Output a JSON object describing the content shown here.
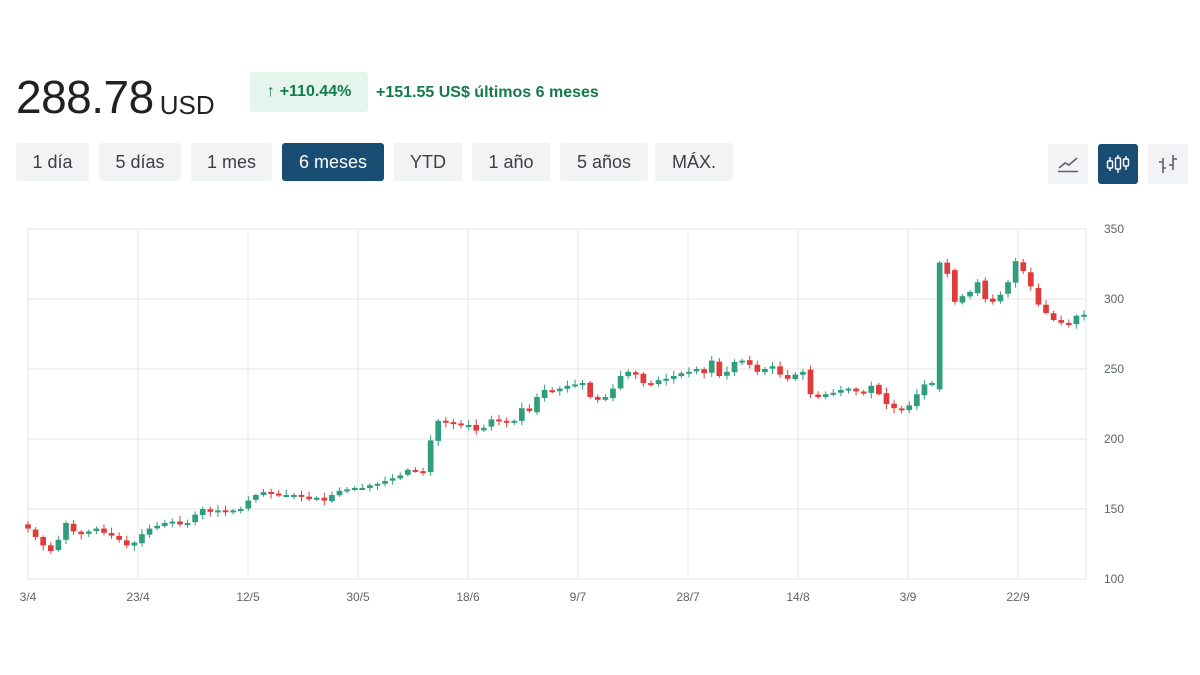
{
  "header": {
    "price": "288.78",
    "currency": "USD",
    "change_pct": "+110.44%",
    "change_abs": "+151.55 US$ últimos 6 meses",
    "up_icon": "arrow-up-icon",
    "positive_color": "#137a4b"
  },
  "range_tabs": [
    {
      "label": "1 día",
      "active": false
    },
    {
      "label": "5 días",
      "active": false
    },
    {
      "label": "1 mes",
      "active": false
    },
    {
      "label": "6 meses",
      "active": true
    },
    {
      "label": "YTD",
      "active": false
    },
    {
      "label": "1 año",
      "active": false
    },
    {
      "label": "5 años",
      "active": false
    },
    {
      "label": "MÁX.",
      "active": false
    }
  ],
  "view_buttons": [
    {
      "name": "line-chart-icon",
      "active": false
    },
    {
      "name": "candlestick-chart-icon",
      "active": true
    },
    {
      "name": "ohlc-bar-chart-icon",
      "active": false
    }
  ],
  "colors": {
    "up": "#2e9e7e",
    "down": "#e03c3c",
    "accent": "#1a4d73",
    "grid": "#e6e6e6"
  },
  "chart_data": {
    "type": "candlestick",
    "title": "",
    "xlabel": "",
    "ylabel": "",
    "ylim": [
      100,
      350
    ],
    "yticks": [
      100,
      150,
      200,
      250,
      300,
      350
    ],
    "y_axis_position": "right",
    "grid": true,
    "xtick_labels": [
      "3/4",
      "23/4",
      "12/5",
      "30/5",
      "18/6",
      "9/7",
      "28/7",
      "14/8",
      "3/9",
      "22/9"
    ],
    "closes": [
      136,
      130,
      124,
      120,
      128,
      140,
      134,
      132,
      134,
      136,
      133,
      131,
      128,
      124,
      126,
      132,
      136,
      138,
      140,
      141,
      139,
      140,
      146,
      150,
      148,
      149,
      148,
      149,
      150,
      156,
      160,
      162,
      161,
      160,
      160,
      160,
      159,
      157,
      158,
      156,
      160,
      163,
      164,
      165,
      165,
      167,
      168,
      170,
      172,
      174,
      178,
      177,
      176,
      199,
      213,
      212,
      211,
      210,
      210,
      206,
      208,
      214,
      213,
      212,
      213,
      222,
      220,
      230,
      235,
      234,
      236,
      238,
      239,
      240,
      230,
      228,
      230,
      236,
      245,
      248,
      246,
      240,
      239,
      242,
      243,
      245,
      247,
      248,
      250,
      247,
      256,
      245,
      248,
      255,
      256,
      253,
      248,
      250,
      252,
      246,
      243,
      246,
      248,
      232,
      230,
      232,
      233,
      235,
      236,
      234,
      233,
      238,
      232,
      225,
      222,
      221,
      224,
      232,
      239,
      240,
      326,
      318,
      298,
      302,
      305,
      312,
      300,
      298,
      303,
      312,
      327,
      320,
      309,
      296,
      290,
      285,
      283,
      282,
      288,
      288.78
    ]
  }
}
